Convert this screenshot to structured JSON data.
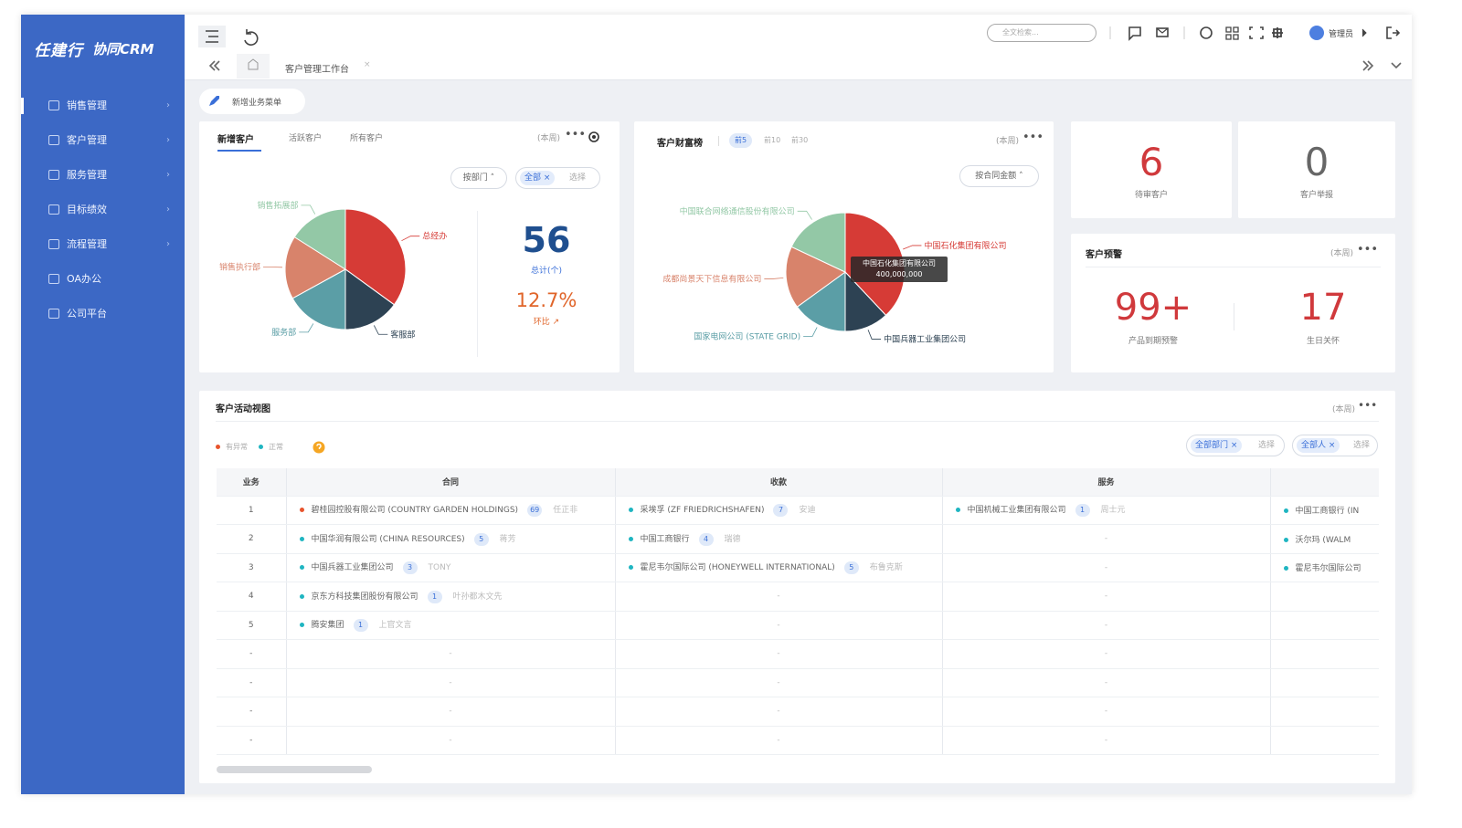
{
  "sidebar": {
    "logo": "任建行",
    "logo_sub": "协同CRM",
    "menu": [
      "销售管理",
      "客户管理",
      "服务管理",
      "目标绩效",
      "流程管理",
      "OA办公",
      "公司平台"
    ]
  },
  "topbar": {
    "search": "全文检索...",
    "user": "管理员",
    "tab": "客户管理工作台"
  },
  "quick_menu": "新增业务菜单",
  "new_customers": {
    "tabs": [
      "新增客户",
      "活跃客户",
      "所有客户"
    ],
    "period": "(本周)",
    "filters": [
      "按部门",
      "全部",
      "选择"
    ],
    "chart": {
      "type": "pie",
      "categories": [
        "总经办",
        "客服部",
        "服务部",
        "销售执行部",
        "销售拓展部"
      ],
      "values": [
        35,
        15,
        17,
        17,
        16
      ],
      "colors": [
        "#d63b36",
        "#2d4253",
        "#5b9ea6",
        "#d8836b",
        "#93c8a6"
      ]
    },
    "total": 56,
    "total_label": "总计(个)",
    "ratio": "12.7%",
    "ratio_label": "环比"
  },
  "wealth_rank": {
    "title": "客户财富榜",
    "tabs": [
      "前5",
      "前10",
      "前30"
    ],
    "period": "(本周)",
    "filter": "按合同金额",
    "chart": {
      "type": "pie",
      "categories": [
        "中国石化集团有限公司",
        "中国兵器工业集团公司",
        "国家电网公司 (STATE GRID)",
        "成都尚景天下信息有限公司",
        "中国联合网络通信股份有限公司"
      ],
      "values": [
        38,
        12,
        15,
        17,
        18
      ],
      "colors": [
        "#d63b36",
        "#2d4253",
        "#5b9ea6",
        "#d8836b",
        "#93c8a6"
      ]
    },
    "tooltip": {
      "name": "中国石化集团有限公司",
      "value": "400,000,000"
    }
  },
  "pending": {
    "value": 6,
    "label": "待审客户"
  },
  "reports": {
    "value": 0,
    "label": "客户举报"
  },
  "warning": {
    "title": "客户预警",
    "period": "(本周)",
    "items": [
      {
        "value": "99+",
        "label": "产品到期预警"
      },
      {
        "value": 17,
        "label": "生日关怀"
      }
    ]
  },
  "activity": {
    "title": "客户活动视图",
    "period": "(本周)",
    "legend": [
      "有异常",
      "正常"
    ],
    "status_colors": {
      "abnormal": "#e8542d",
      "normal": "#1fb5c1"
    },
    "filters": [
      "全部部门",
      "选择",
      "全部人",
      "选择"
    ],
    "columns": [
      "业务",
      "合同",
      "收款",
      "服务"
    ],
    "rows": [
      {
        "no": 1,
        "cells": [
          {
            "name": "碧桂园控股有限公司 (COUNTRY GARDEN HOLDINGS)",
            "count": 69,
            "owner": "任正非",
            "status": "abnormal"
          },
          {
            "name": "采埃孚 (ZF FRIEDRICHSHAFEN)",
            "count": 7,
            "owner": "安迪",
            "status": "normal"
          },
          {
            "name": "中国机械工业集团有限公司",
            "count": 1,
            "owner": "周士元",
            "status": "normal"
          },
          {
            "name": "中国工商银行 (IN",
            "status": "normal"
          }
        ]
      },
      {
        "no": 2,
        "cells": [
          {
            "name": "中国华润有限公司 (CHINA RESOURCES)",
            "count": 5,
            "owner": "蒋芳",
            "status": "normal"
          },
          {
            "name": "中国工商银行",
            "count": 4,
            "owner": "瑞德",
            "status": "normal"
          },
          "-",
          {
            "name": "沃尔玛 (WALM",
            "status": "normal"
          }
        ]
      },
      {
        "no": 3,
        "cells": [
          {
            "name": "中国兵器工业集团公司",
            "count": 3,
            "owner": "TONY",
            "status": "normal"
          },
          {
            "name": "霍尼韦尔国际公司 (HONEYWELL INTERNATIONAL)",
            "count": 5,
            "owner": "布鲁克斯",
            "status": "normal"
          },
          "-",
          {
            "name": "霍尼韦尔国际公司",
            "status": "normal"
          }
        ]
      },
      {
        "no": 4,
        "cells": [
          {
            "name": "京东方科技集团股份有限公司",
            "count": 1,
            "owner": "叶孙都木文先",
            "status": "normal"
          },
          "-",
          "-",
          "-"
        ]
      },
      {
        "no": 5,
        "cells": [
          {
            "name": "腾安集团",
            "count": 1,
            "owner": "上官文言",
            "status": "normal"
          },
          "-",
          "-",
          "-"
        ]
      },
      {
        "no": "-",
        "cells": [
          "-",
          "-",
          "-",
          "-"
        ]
      },
      {
        "no": "-",
        "cells": [
          "-",
          "-",
          "-",
          "-"
        ]
      },
      {
        "no": "-",
        "cells": [
          "-",
          "-",
          "-",
          "-"
        ]
      },
      {
        "no": "-",
        "cells": [
          "-",
          "-",
          "-",
          "-"
        ]
      }
    ]
  }
}
